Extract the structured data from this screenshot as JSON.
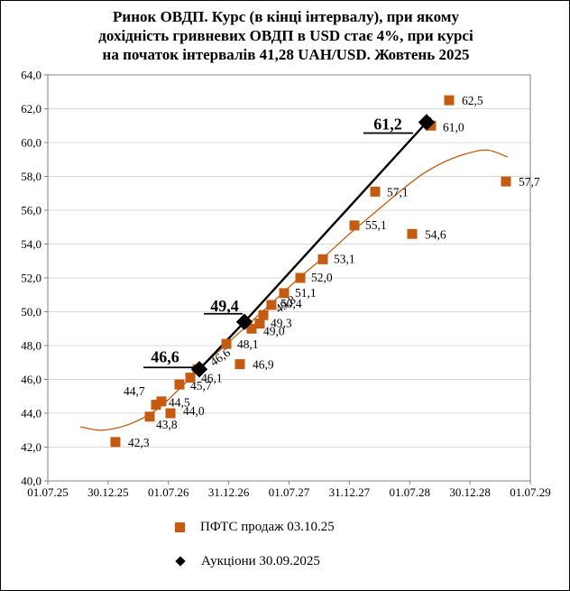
{
  "title": {
    "lines": [
      "Ринок ОВДП. Курс (в кінці інтервалу), при якому",
      "дохідність гривневих ОВДП в USD стає  4%, при курсі",
      "на початок інтервалів 41,28 UAH/USD. Жовтень 2025"
    ]
  },
  "legend": {
    "items": [
      {
        "label": "ПФТС  продаж 03.10.25",
        "marker": "square",
        "color": "#C55A11"
      },
      {
        "label": "Аукціони 30.09.2025",
        "marker": "diamond",
        "color": "#000000"
      }
    ]
  },
  "chart_data": {
    "type": "scatter",
    "title": "Ринок ОВДП. Курс (в кінці інтервалу), при якому дохідність гривневих ОВДП в USD стає 4%, при курсі на початок інтервалів 41,28 UAH/USD. Жовтень 2025",
    "grid": "horizontal",
    "legend_position": "bottom",
    "colors": {
      "pfts": "#C55A11",
      "auction": "#000000",
      "gridline": "#d9d9d9",
      "axis": "#808080"
    },
    "x_axis": {
      "tick_labels": [
        "01.07.25",
        "30.12.25",
        "01.07.26",
        "31.12.26",
        "01.07.27",
        "31.12.27",
        "01.07.28",
        "30.12.28",
        "01.07.29"
      ],
      "note": "x stored as fractional tick index 0-8 along the date axis"
    },
    "y_axis": {
      "min": 40.0,
      "max": 64.0,
      "step": 2.0,
      "tick_labels": [
        "40,0",
        "42,0",
        "44,0",
        "46,0",
        "48,0",
        "50,0",
        "52,0",
        "54,0",
        "56,0",
        "58,0",
        "60,0",
        "62,0",
        "64,0"
      ]
    },
    "series": [
      {
        "name": "ПФТС  продаж 03.10.25",
        "marker": "square",
        "color": "#C55A11",
        "points": [
          {
            "x": 1.121,
            "y": 42.3,
            "label": "42,3",
            "dx": 14,
            "dy": 5
          },
          {
            "x": 1.69,
            "y": 43.8,
            "label": "43,8",
            "dx": 7,
            "dy": 13
          },
          {
            "x": 1.794,
            "y": 44.5,
            "label": "44,5",
            "dx": 14,
            "dy": 2
          },
          {
            "x": 1.884,
            "y": 44.7,
            "label": "44,7",
            "dx": -42,
            "dy": -7
          },
          {
            "x": 2.034,
            "y": 44.0,
            "label": "44,0",
            "dx": 14,
            "dy": 2
          },
          {
            "x": 2.183,
            "y": 45.7,
            "label": "45,7",
            "dx": 12,
            "dy": 6
          },
          {
            "x": 2.363,
            "y": 46.1,
            "label": "46,1",
            "dx": 12,
            "dy": 5
          },
          {
            "x": 2.482,
            "y": 46.6,
            "label": "46,6",
            "dx": 18,
            "dy": -3,
            "rot": -35
          },
          {
            "x": 2.961,
            "y": 48.1,
            "label": "48,1",
            "dx": 12,
            "dy": 5
          },
          {
            "x": 3.185,
            "y": 46.9,
            "label": "46,9",
            "dx": 14,
            "dy": 5
          },
          {
            "x": 3.379,
            "y": 49.0,
            "label": "49,0",
            "dx": 13,
            "dy": 7
          },
          {
            "x": 3.514,
            "y": 49.3,
            "label": "49,3",
            "dx": 12,
            "dy": 4
          },
          {
            "x": 3.574,
            "y": 49.8,
            "label": "49,8",
            "dx": 17,
            "dy": -2,
            "rot": -33
          },
          {
            "x": 3.708,
            "y": 50.4,
            "label": "50,4",
            "dx": 10,
            "dy": 3
          },
          {
            "x": 3.918,
            "y": 51.1,
            "label": "51,1",
            "dx": 12,
            "dy": 4
          },
          {
            "x": 4.187,
            "y": 52.0,
            "label": "52,0",
            "dx": 12,
            "dy": 4
          },
          {
            "x": 4.561,
            "y": 53.1,
            "label": "53,1",
            "dx": 12,
            "dy": 4
          },
          {
            "x": 5.084,
            "y": 55.1,
            "label": "55,1",
            "dx": 12,
            "dy": 4
          },
          {
            "x": 5.428,
            "y": 57.1,
            "label": "57,1",
            "dx": 13,
            "dy": 5
          },
          {
            "x": 6.041,
            "y": 54.6,
            "label": "54,6",
            "dx": 14,
            "dy": 5
          },
          {
            "x": 6.355,
            "y": 61.0,
            "label": "61,0",
            "dx": 13,
            "dy": 6
          },
          {
            "x": 6.654,
            "y": 62.5,
            "label": "62,5",
            "dx": 14,
            "dy": 5
          },
          {
            "x": 7.596,
            "y": 57.7,
            "label": "57,7",
            "dx": 14,
            "dy": 5
          }
        ]
      },
      {
        "name": "Аукціони 30.09.2025",
        "marker": "diamond",
        "color": "#000000",
        "points": [
          {
            "x": 2.512,
            "y": 46.6,
            "label": "46,6",
            "dx": -38,
            "dy": -8,
            "ux1": -62,
            "ux2": 2,
            "uy": -2
          },
          {
            "x": 3.26,
            "y": 49.4,
            "label": "49,4",
            "dx": -22,
            "dy": -12,
            "ux1": -45,
            "ux2": -2,
            "uy": -9
          },
          {
            "x": 6.28,
            "y": 61.2,
            "label": "61,2",
            "dx": -43,
            "dy": 8,
            "ux1": -70,
            "ux2": -15,
            "uy": 12
          }
        ]
      }
    ],
    "trendlines": [
      {
        "name": "pfts-poly-trend",
        "color": "#C55A11",
        "width": 1.3,
        "points": [
          [
            0.54,
            43.2
          ],
          [
            0.9,
            43.0
          ],
          [
            1.35,
            43.35
          ],
          [
            1.8,
            44.2
          ],
          [
            2.2,
            45.5
          ],
          [
            2.6,
            46.9
          ],
          [
            3.0,
            48.2
          ],
          [
            3.4,
            49.5
          ],
          [
            3.8,
            50.8
          ],
          [
            4.2,
            52.1
          ],
          [
            4.6,
            53.3
          ],
          [
            5.0,
            54.6
          ],
          [
            5.4,
            55.8
          ],
          [
            5.8,
            57.0
          ],
          [
            6.2,
            58.1
          ],
          [
            6.6,
            58.9
          ],
          [
            7.0,
            59.4
          ],
          [
            7.3,
            59.55
          ],
          [
            7.62,
            59.15
          ]
        ]
      },
      {
        "name": "auction-arrow-line",
        "color": "#000000",
        "width": 2.4,
        "points": [
          [
            2.512,
            46.6
          ],
          [
            3.26,
            49.4
          ],
          [
            6.28,
            61.2
          ]
        ],
        "arrow_end": true
      }
    ]
  }
}
